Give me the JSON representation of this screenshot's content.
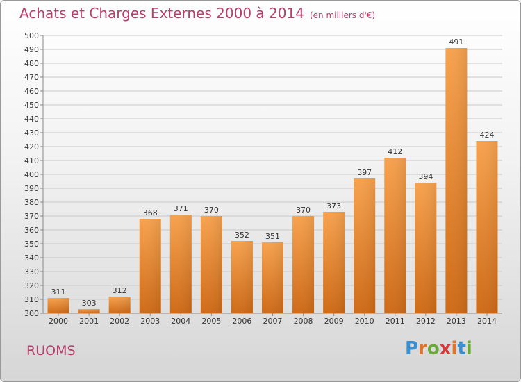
{
  "chart_title": "Achats et Charges Externes 2000 à 2014",
  "chart_subtitle": "(en milliers d'€)",
  "town": "RUOMS",
  "logo": {
    "letters": [
      "P",
      "r",
      "o",
      "x",
      "i",
      "t",
      "i"
    ],
    "colors": [
      "#3a8fd0",
      "#e0742a",
      "#6aa83a",
      "#d23c3c",
      "#e0742a",
      "#3a8fd0",
      "#6aa83a"
    ]
  },
  "colors": {
    "title": "#b5406b",
    "bar_light": "#f7a24e",
    "bar_dark": "#cf6b17"
  },
  "chart_data": {
    "type": "bar",
    "title": "Achats et Charges Externes 2000 à 2014",
    "subtitle": "(en milliers d'€)",
    "xlabel": "",
    "ylabel": "",
    "categories": [
      "2000",
      "2001",
      "2002",
      "2003",
      "2004",
      "2005",
      "2006",
      "2007",
      "2008",
      "2009",
      "2010",
      "2011",
      "2012",
      "2013",
      "2014"
    ],
    "values": [
      311,
      303,
      312,
      368,
      371,
      370,
      352,
      351,
      370,
      373,
      397,
      412,
      394,
      491,
      424
    ],
    "ylim": [
      300,
      500
    ],
    "ytick_step": 10,
    "grid": true
  }
}
